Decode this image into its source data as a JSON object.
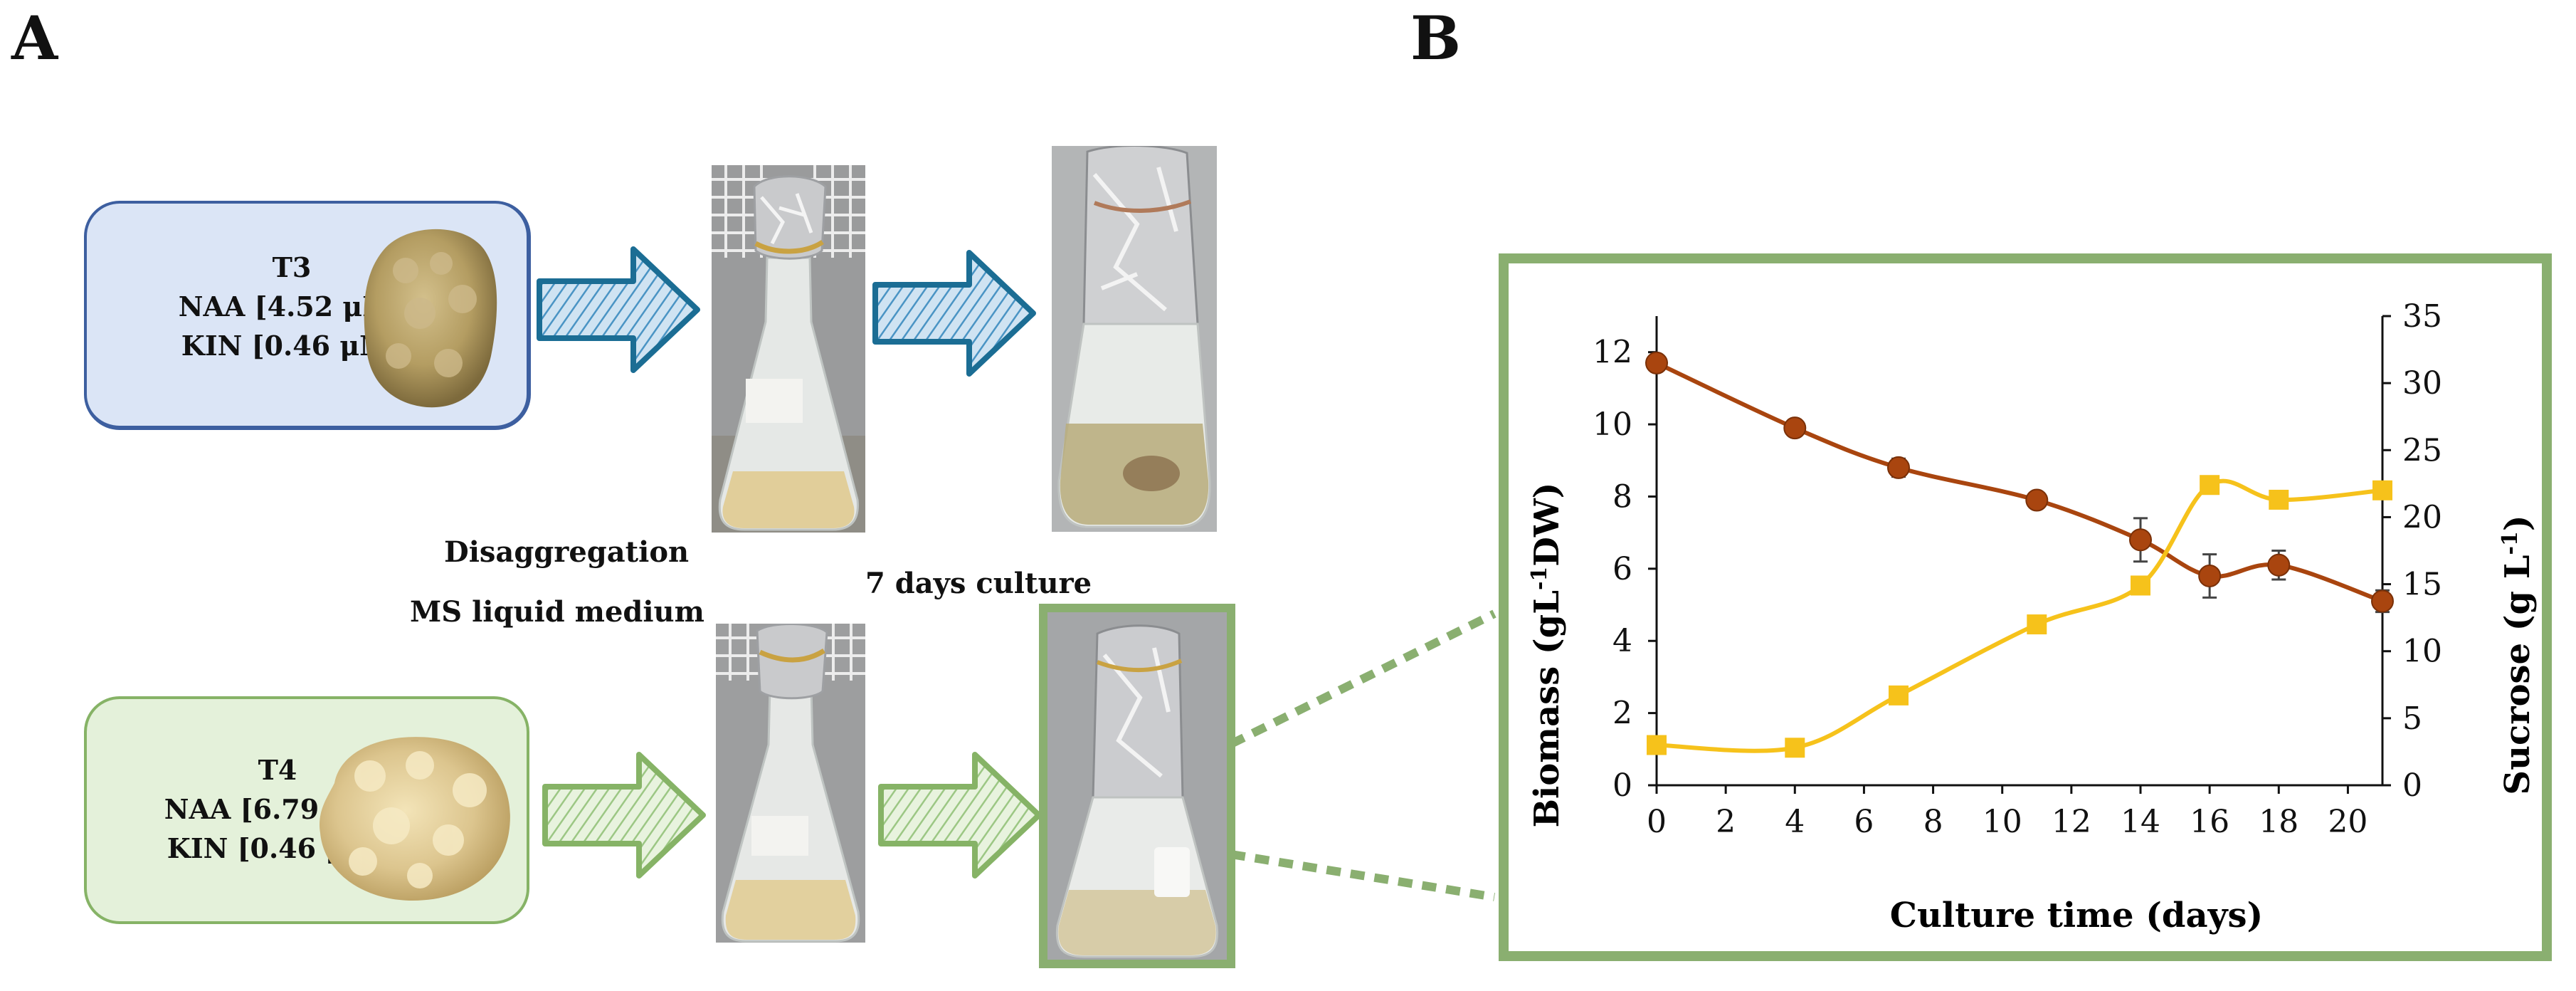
{
  "panels": {
    "left_letter": "A",
    "right_letter": "B"
  },
  "treatments": [
    {
      "name": "T3",
      "line1": "NAA [4.52 μM]",
      "line2": "KIN [0.46 μM]",
      "box_color": "#dbe5f6",
      "border_color": "#3d5fa0",
      "flask_label": "T3"
    },
    {
      "name": "T4",
      "line1": "NAA [6.79 μM]",
      "line2": "KIN [0.46 μM]",
      "box_color": "#e4f1da",
      "border_color": "#86b366",
      "flask_label": "T4"
    }
  ],
  "process": {
    "step1_line1": "Disaggregation",
    "step1_line2": "MS liquid medium",
    "step2": "7 days culture"
  },
  "colors": {
    "arrow_blue": "#1b6d94",
    "arrow_green": "#86b366",
    "frame_green": "#8aaf70",
    "biomass": "#a9450f",
    "sucrose": "#f6c21b"
  },
  "chart_data": {
    "type": "line",
    "xlabel": "Culture time (days)",
    "ylabel_left": "Biomass (gL-1DW)",
    "ylabel_right": "Sucrose (g L-1)",
    "xlim": [
      0,
      21
    ],
    "xticks": [
      0,
      2,
      4,
      6,
      8,
      10,
      12,
      14,
      16,
      18,
      20
    ],
    "ylim_left": [
      0,
      13
    ],
    "yticks_left": [
      0,
      2,
      4,
      6,
      8,
      10,
      12
    ],
    "ylim_right": [
      0,
      35
    ],
    "yticks_right": [
      0,
      5,
      10,
      15,
      20,
      25,
      30,
      35
    ],
    "series": [
      {
        "axis": "left",
        "color": "#a9450f",
        "marker": "circle",
        "x": [
          0,
          4,
          7,
          11,
          14,
          16,
          18,
          21
        ],
        "y": [
          11.7,
          9.9,
          8.8,
          7.9,
          6.8,
          5.8,
          6.1,
          5.1
        ],
        "err": [
          0.1,
          0.1,
          0.25,
          0.1,
          0.6,
          0.6,
          0.4,
          0.3
        ]
      },
      {
        "axis": "right",
        "color": "#f6c21b",
        "marker": "square",
        "x": [
          0,
          4,
          7,
          11,
          14,
          16,
          18,
          21
        ],
        "y": [
          3.0,
          2.8,
          6.7,
          12.0,
          14.9,
          22.4,
          21.3,
          22.0
        ],
        "err": [
          0.3,
          0.3,
          0.5,
          0.5,
          0.5,
          0.6,
          0.6,
          0.5
        ]
      }
    ]
  }
}
